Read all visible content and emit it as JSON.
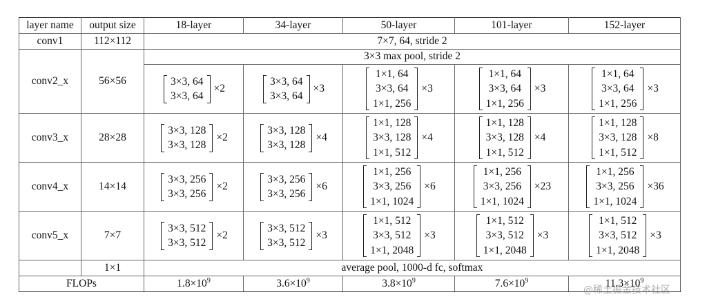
{
  "headers": [
    "layer name",
    "output size",
    "18-layer",
    "34-layer",
    "50-layer",
    "101-layer",
    "152-layer"
  ],
  "conv1": {
    "name": "conv1",
    "size": "112×112",
    "desc": "7×7, 64, stride 2"
  },
  "pool": {
    "desc": "3×3 max pool, stride 2"
  },
  "stages": [
    {
      "name": "conv2_x",
      "size": "56×56",
      "cells": [
        {
          "lines": [
            "3×3, 64",
            "3×3, 64"
          ],
          "mult": "×2"
        },
        {
          "lines": [
            "3×3, 64",
            "3×3, 64"
          ],
          "mult": "×3"
        },
        {
          "lines": [
            "1×1, 64",
            "3×3, 64",
            "1×1, 256"
          ],
          "mult": "×3"
        },
        {
          "lines": [
            "1×1, 64",
            "3×3, 64",
            "1×1, 256"
          ],
          "mult": "×3"
        },
        {
          "lines": [
            "1×1, 64",
            "3×3, 64",
            "1×1, 256"
          ],
          "mult": "×3"
        }
      ]
    },
    {
      "name": "conv3_x",
      "size": "28×28",
      "cells": [
        {
          "lines": [
            "3×3, 128",
            "3×3, 128"
          ],
          "mult": "×2"
        },
        {
          "lines": [
            "3×3, 128",
            "3×3, 128"
          ],
          "mult": "×4"
        },
        {
          "lines": [
            "1×1, 128",
            "3×3, 128",
            "1×1, 512"
          ],
          "mult": "×4"
        },
        {
          "lines": [
            "1×1, 128",
            "3×3, 128",
            "1×1, 512"
          ],
          "mult": "×4"
        },
        {
          "lines": [
            "1×1, 128",
            "3×3, 128",
            "1×1, 512"
          ],
          "mult": "×8"
        }
      ]
    },
    {
      "name": "conv4_x",
      "size": "14×14",
      "cells": [
        {
          "lines": [
            "3×3, 256",
            "3×3, 256"
          ],
          "mult": "×2"
        },
        {
          "lines": [
            "3×3, 256",
            "3×3, 256"
          ],
          "mult": "×6"
        },
        {
          "lines": [
            "1×1, 256",
            "3×3, 256",
            "1×1, 1024"
          ],
          "mult": "×6"
        },
        {
          "lines": [
            "1×1, 256",
            "3×3, 256",
            "1×1, 1024"
          ],
          "mult": "×23"
        },
        {
          "lines": [
            "1×1, 256",
            "3×3, 256",
            "1×1, 1024"
          ],
          "mult": "×36"
        }
      ]
    },
    {
      "name": "conv5_x",
      "size": "7×7",
      "cells": [
        {
          "lines": [
            "3×3, 512",
            "3×3, 512"
          ],
          "mult": "×2"
        },
        {
          "lines": [
            "3×3, 512",
            "3×3, 512"
          ],
          "mult": "×3"
        },
        {
          "lines": [
            "1×1, 512",
            "3×3, 512",
            "1×1, 2048"
          ],
          "mult": "×3"
        },
        {
          "lines": [
            "1×1, 512",
            "3×3, 512",
            "1×1, 2048"
          ],
          "mult": "×3"
        },
        {
          "lines": [
            "1×1, 512",
            "3×3, 512",
            "1×1, 2048"
          ],
          "mult": "×3"
        }
      ]
    }
  ],
  "final": {
    "size": "1×1",
    "desc": "average pool, 1000-d fc, softmax"
  },
  "flops": {
    "label": "FLOPs",
    "values": [
      {
        "mantissa": "1.8×10",
        "exp": "9"
      },
      {
        "mantissa": "3.6×10",
        "exp": "9"
      },
      {
        "mantissa": "3.8×10",
        "exp": "9"
      },
      {
        "mantissa": "7.6×10",
        "exp": "9"
      },
      {
        "mantissa": "11.3×10",
        "exp": "9"
      }
    ]
  },
  "watermark": "@稀土掘金技术社区"
}
